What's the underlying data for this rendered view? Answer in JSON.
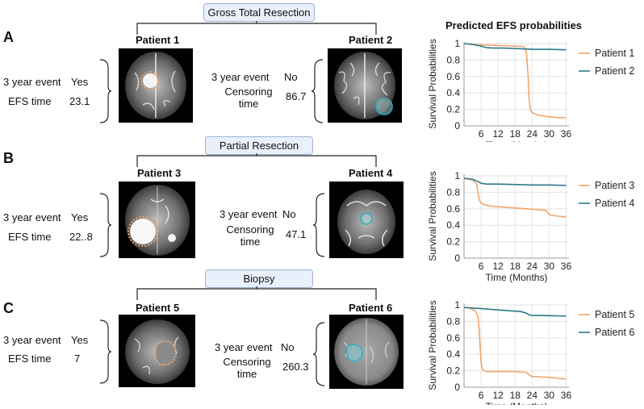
{
  "sections": [
    {
      "letter": "A",
      "procedure": "Gross Total Resection",
      "left_patient": {
        "name": "Patient 1",
        "row1_label": "3 year event",
        "row1_value": "Yes",
        "row2_label": "EFS time",
        "row2_value": "23.1"
      },
      "right_patient": {
        "name": "Patient 2",
        "row1_label": "3 year event",
        "row1_value": "No",
        "row2_label": "Censoring time",
        "row2_value": "86.7"
      }
    },
    {
      "letter": "B",
      "procedure": "Partial Resection",
      "left_patient": {
        "name": "Patient 3",
        "row1_label": "3 year event",
        "row1_value": "Yes",
        "row2_label": "EFS time",
        "row2_value": "22..8"
      },
      "right_patient": {
        "name": "Patient 4",
        "row1_label": "3 year event",
        "row1_value": "No",
        "row2_label": "Censoring time",
        "row2_value": "47.1"
      }
    },
    {
      "letter": "C",
      "procedure": "Biopsy",
      "left_patient": {
        "name": "Patient 5",
        "row1_label": "3 year event",
        "row1_value": "Yes",
        "row2_label": "EFS time",
        "row2_value": "7"
      },
      "right_patient": {
        "name": "Patient 6",
        "row1_label": "3 year event",
        "row1_value": "No",
        "row2_label": "Censoring time",
        "row2_value": "260.3"
      }
    }
  ],
  "charts_title": "Predicted EFS probabilities",
  "colors": {
    "event": "#f0a66c",
    "censored": "#2e7a8a",
    "grid": "#e3e3e3",
    "box": "#e9f0fb"
  },
  "chart_data": [
    {
      "type": "line",
      "xlabel": "Time (Months)",
      "ylabel": "Survival Probabilities",
      "xlim": [
        0,
        37
      ],
      "ylim": [
        0,
        1.02
      ],
      "xticks": [
        "6",
        "12",
        "18",
        "24",
        "30",
        "36"
      ],
      "yticks": [
        "0",
        "0.2",
        "0.4",
        "0.6",
        "0.8",
        "1"
      ],
      "series": [
        {
          "name": "Patient 1",
          "color": "#f0a66c",
          "x": [
            0,
            3,
            6,
            10,
            14,
            18,
            21,
            22,
            22.6,
            23,
            23.4,
            24,
            26,
            30,
            33,
            36
          ],
          "y": [
            1.0,
            0.99,
            0.985,
            0.98,
            0.975,
            0.97,
            0.965,
            0.9,
            0.6,
            0.3,
            0.2,
            0.16,
            0.13,
            0.11,
            0.1,
            0.1
          ]
        },
        {
          "name": "Patient 2",
          "color": "#2e7a8a",
          "x": [
            0,
            3,
            6,
            8,
            10,
            14,
            18,
            22,
            24,
            30,
            36
          ],
          "y": [
            1.0,
            0.99,
            0.97,
            0.95,
            0.945,
            0.945,
            0.94,
            0.935,
            0.93,
            0.93,
            0.925
          ]
        }
      ]
    },
    {
      "type": "line",
      "xlabel": "Time (Months)",
      "ylabel": "Survival Probabilities",
      "xlim": [
        0,
        37
      ],
      "ylim": [
        0,
        1.02
      ],
      "xticks": [
        "6",
        "12",
        "18",
        "24",
        "30",
        "36"
      ],
      "yticks": [
        "0",
        "0.2",
        "0.4",
        "0.6",
        "0.8",
        "1"
      ],
      "series": [
        {
          "name": "Patient 3",
          "color": "#f0a66c",
          "x": [
            0,
            3,
            4.5,
            5,
            5.5,
            6,
            7,
            10,
            14,
            18,
            22,
            26,
            29,
            30,
            31,
            36
          ],
          "y": [
            0.97,
            0.95,
            0.9,
            0.78,
            0.7,
            0.67,
            0.65,
            0.63,
            0.62,
            0.61,
            0.6,
            0.59,
            0.58,
            0.53,
            0.52,
            0.5
          ]
        },
        {
          "name": "Patient 4",
          "color": "#2e7a8a",
          "x": [
            0,
            3,
            5,
            6,
            8,
            12,
            18,
            24,
            30,
            36
          ],
          "y": [
            0.97,
            0.96,
            0.93,
            0.91,
            0.9,
            0.9,
            0.895,
            0.89,
            0.89,
            0.885
          ]
        }
      ]
    },
    {
      "type": "line",
      "xlabel": "Time (Months)",
      "ylabel": "Survival Probabilities",
      "xlim": [
        0,
        37
      ],
      "ylim": [
        0,
        1.02
      ],
      "xticks": [
        "6",
        "12",
        "18",
        "24",
        "30",
        "36"
      ],
      "yticks": [
        "0",
        "0.2",
        "0.4",
        "0.6",
        "0.8",
        "1"
      ],
      "series": [
        {
          "name": "Patient 5",
          "color": "#f0a66c",
          "x": [
            0,
            2,
            4,
            5,
            5.5,
            6,
            6.5,
            7,
            8,
            12,
            18,
            22,
            23,
            24,
            30,
            36
          ],
          "y": [
            0.97,
            0.96,
            0.93,
            0.85,
            0.6,
            0.3,
            0.22,
            0.2,
            0.19,
            0.19,
            0.19,
            0.18,
            0.15,
            0.13,
            0.12,
            0.1
          ]
        },
        {
          "name": "Patient 6",
          "color": "#2e7a8a",
          "x": [
            0,
            4,
            8,
            12,
            16,
            20,
            22,
            23,
            24,
            30,
            36
          ],
          "y": [
            0.97,
            0.96,
            0.95,
            0.94,
            0.93,
            0.92,
            0.9,
            0.88,
            0.875,
            0.87,
            0.865
          ]
        }
      ]
    }
  ]
}
